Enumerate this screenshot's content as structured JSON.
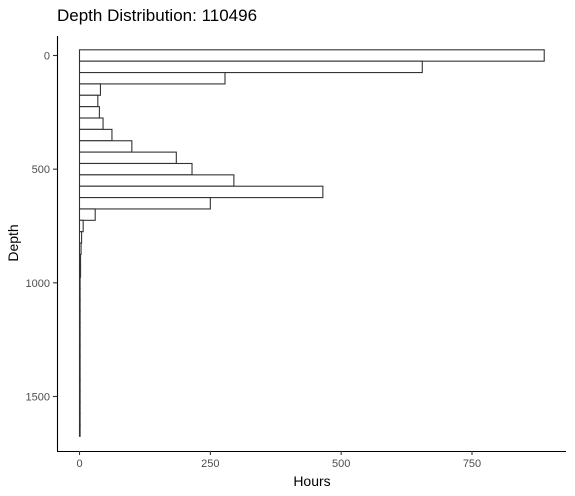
{
  "chart_data": {
    "type": "bar",
    "orientation": "horizontal",
    "title": "Depth Distribution: 110496",
    "xlabel": "Hours",
    "ylabel": "Depth",
    "xlim": [
      0,
      900
    ],
    "ylim_reversed": [
      1700,
      -50
    ],
    "x_ticks": [
      0,
      250,
      500,
      750
    ],
    "x_tick_labels": [
      "0",
      "250",
      "500",
      "750"
    ],
    "y_ticks": [
      0,
      500,
      1000,
      1500
    ],
    "y_tick_labels": [
      "0",
      "500",
      "1000",
      "1500"
    ],
    "bin_width": 50,
    "bins": [
      {
        "depth_start": -25,
        "depth_end": 25,
        "hours": 888
      },
      {
        "depth_start": 25,
        "depth_end": 75,
        "hours": 655
      },
      {
        "depth_start": 75,
        "depth_end": 125,
        "hours": 278
      },
      {
        "depth_start": 125,
        "depth_end": 175,
        "hours": 40
      },
      {
        "depth_start": 175,
        "depth_end": 225,
        "hours": 35
      },
      {
        "depth_start": 225,
        "depth_end": 275,
        "hours": 38
      },
      {
        "depth_start": 275,
        "depth_end": 325,
        "hours": 45
      },
      {
        "depth_start": 325,
        "depth_end": 375,
        "hours": 62
      },
      {
        "depth_start": 375,
        "depth_end": 425,
        "hours": 100
      },
      {
        "depth_start": 425,
        "depth_end": 475,
        "hours": 185
      },
      {
        "depth_start": 475,
        "depth_end": 525,
        "hours": 215
      },
      {
        "depth_start": 525,
        "depth_end": 575,
        "hours": 295
      },
      {
        "depth_start": 575,
        "depth_end": 625,
        "hours": 465
      },
      {
        "depth_start": 625,
        "depth_end": 675,
        "hours": 250
      },
      {
        "depth_start": 675,
        "depth_end": 725,
        "hours": 30
      },
      {
        "depth_start": 725,
        "depth_end": 775,
        "hours": 7
      },
      {
        "depth_start": 775,
        "depth_end": 825,
        "hours": 4
      },
      {
        "depth_start": 825,
        "depth_end": 875,
        "hours": 3
      },
      {
        "depth_start": 875,
        "depth_end": 925,
        "hours": 2
      },
      {
        "depth_start": 925,
        "depth_end": 975,
        "hours": 2
      },
      {
        "depth_start": 975,
        "depth_end": 1025,
        "hours": 1
      },
      {
        "depth_start": 1025,
        "depth_end": 1075,
        "hours": 1
      },
      {
        "depth_start": 1075,
        "depth_end": 1125,
        "hours": 1
      },
      {
        "depth_start": 1125,
        "depth_end": 1175,
        "hours": 1
      },
      {
        "depth_start": 1175,
        "depth_end": 1225,
        "hours": 1
      },
      {
        "depth_start": 1225,
        "depth_end": 1275,
        "hours": 1
      },
      {
        "depth_start": 1275,
        "depth_end": 1325,
        "hours": 1
      },
      {
        "depth_start": 1325,
        "depth_end": 1375,
        "hours": 1
      },
      {
        "depth_start": 1375,
        "depth_end": 1425,
        "hours": 1
      },
      {
        "depth_start": 1425,
        "depth_end": 1475,
        "hours": 1
      },
      {
        "depth_start": 1475,
        "depth_end": 1525,
        "hours": 1
      },
      {
        "depth_start": 1525,
        "depth_end": 1575,
        "hours": 1
      },
      {
        "depth_start": 1575,
        "depth_end": 1625,
        "hours": 1
      },
      {
        "depth_start": 1625,
        "depth_end": 1675,
        "hours": 1
      }
    ],
    "fill_color": "#ffffff",
    "stroke_color": "#333333",
    "grid": false
  }
}
